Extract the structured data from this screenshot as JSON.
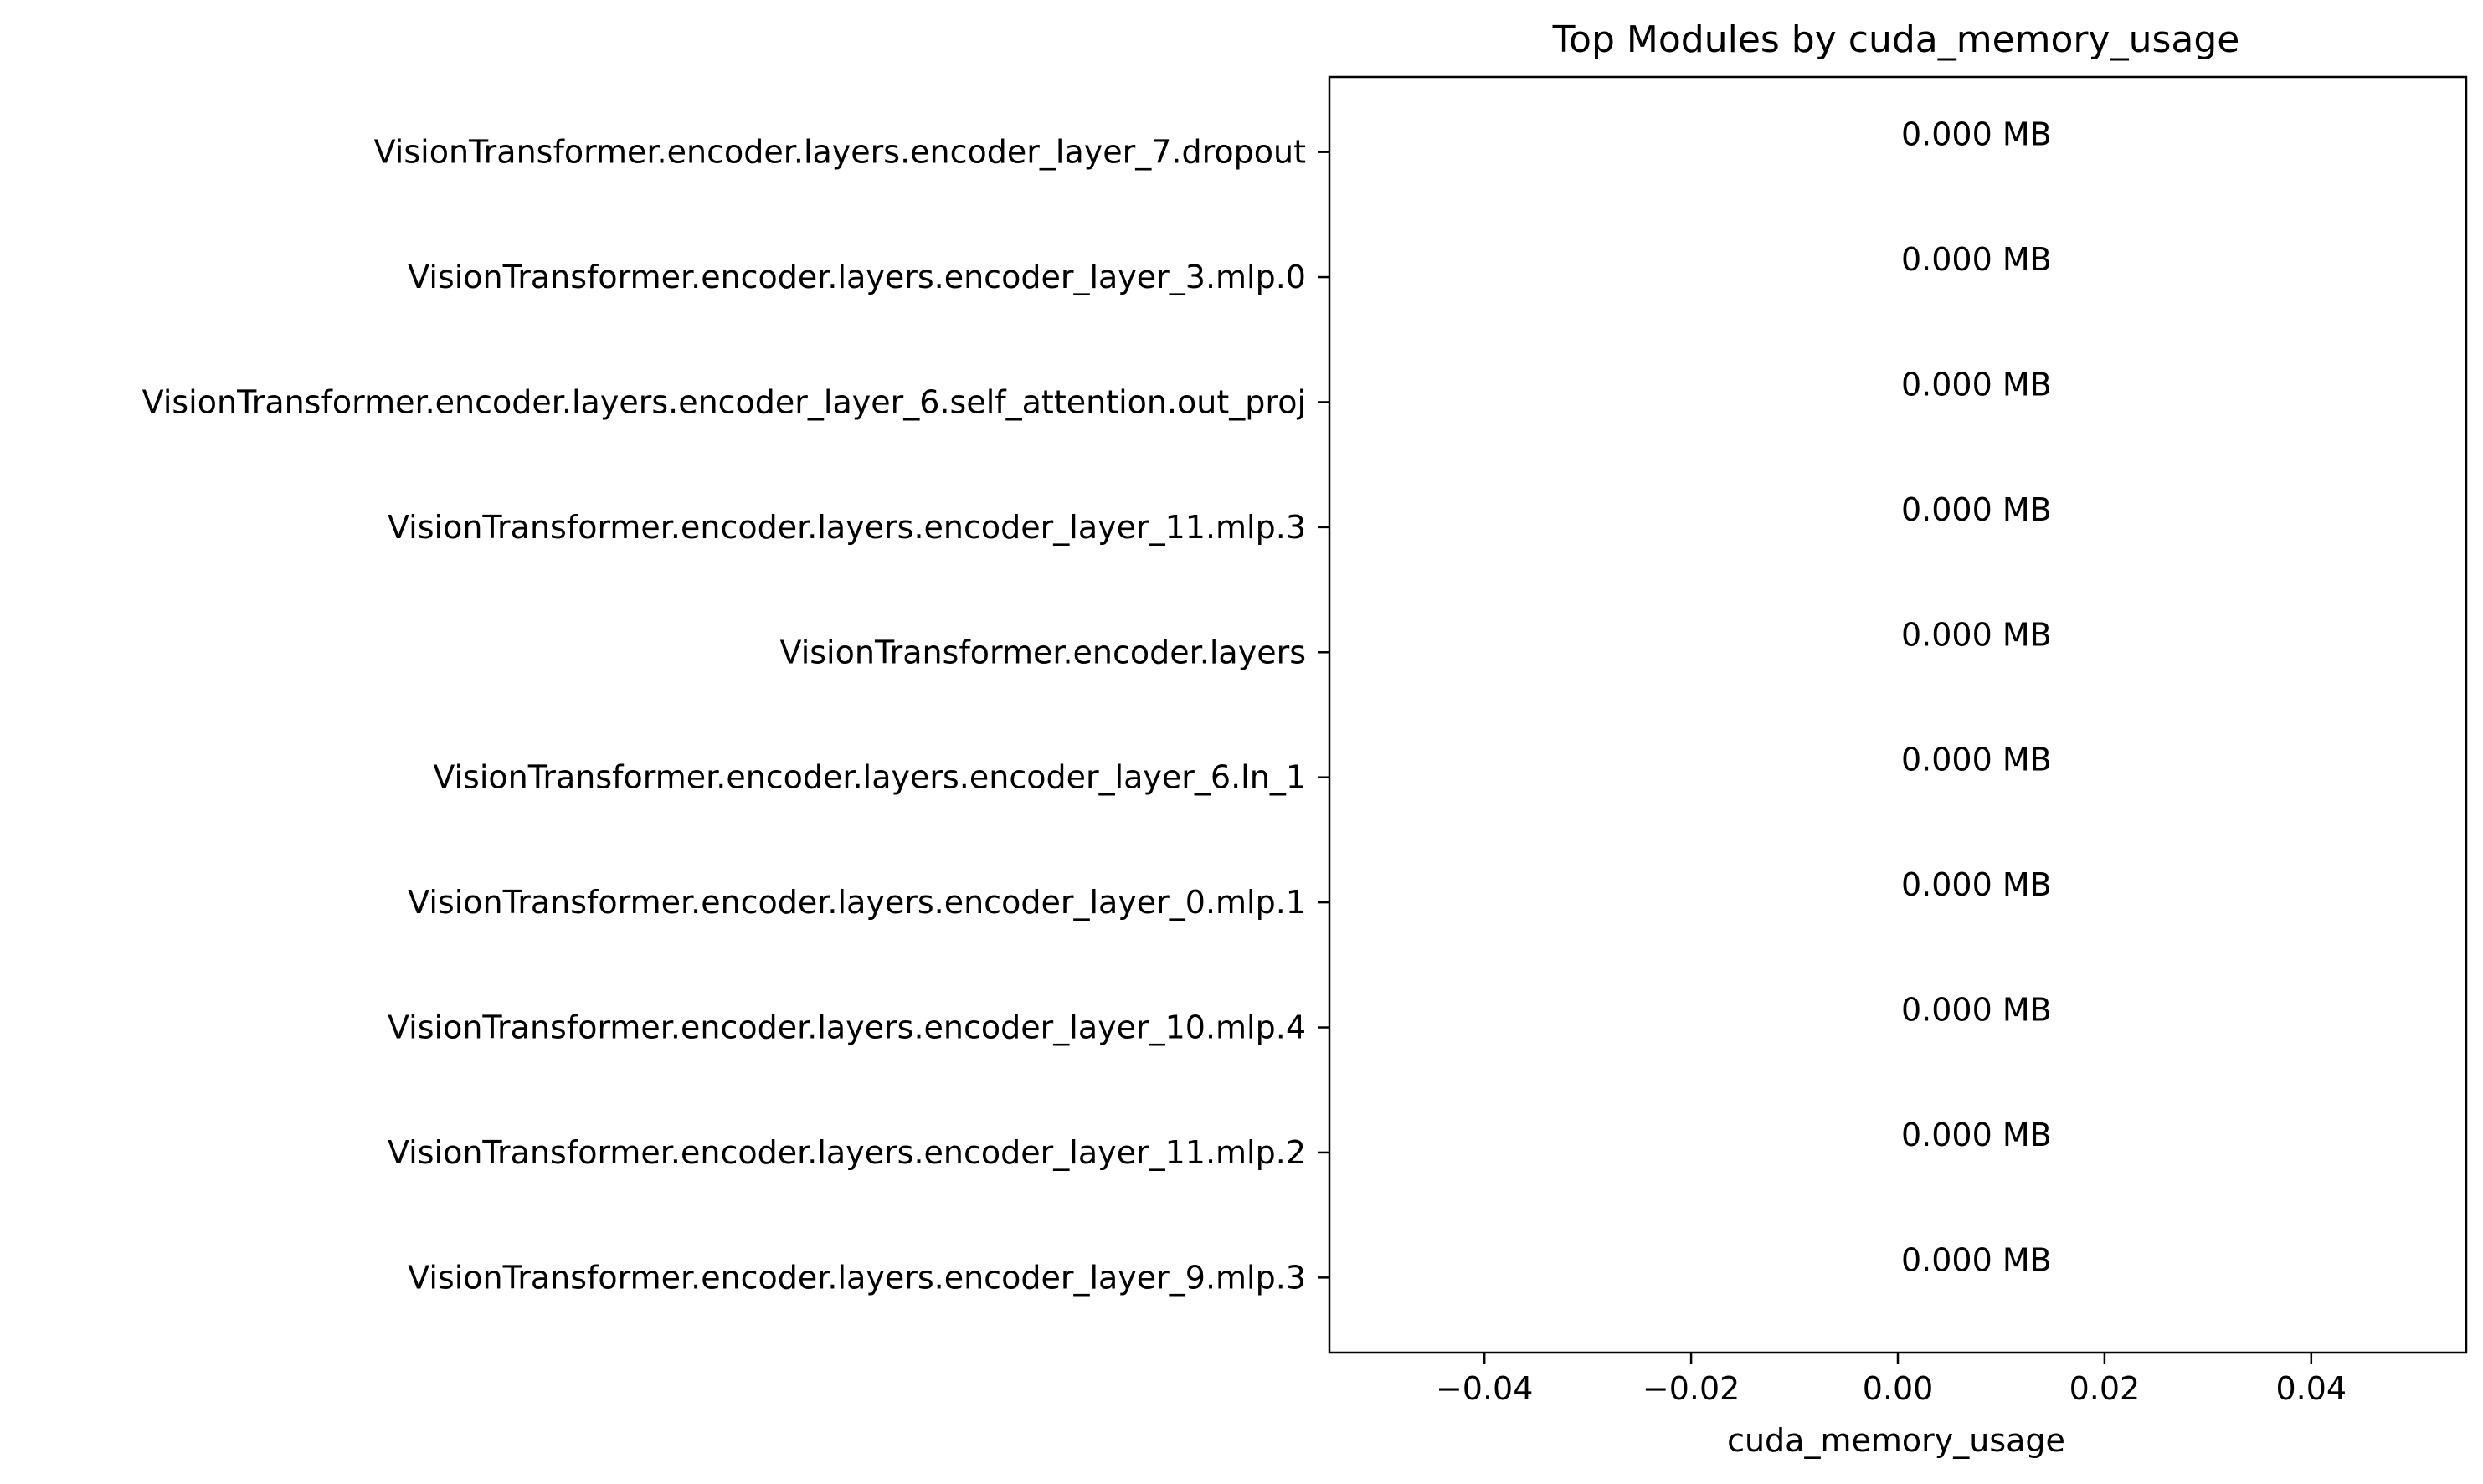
{
  "chart_data": {
    "type": "bar",
    "orientation": "horizontal",
    "title": "Top Modules by cuda_memory_usage",
    "xlabel": "cuda_memory_usage",
    "ylabel": "",
    "xlim": [
      -0.055,
      0.055
    ],
    "xticks": [
      -0.04,
      -0.02,
      0.0,
      0.02,
      0.04
    ],
    "xtick_labels": [
      "−0.04",
      "−0.02",
      "0.00",
      "0.02",
      "0.04"
    ],
    "grid": false,
    "categories": [
      "VisionTransformer.encoder.layers.encoder_layer_7.dropout",
      "VisionTransformer.encoder.layers.encoder_layer_3.mlp.0",
      "VisionTransformer.encoder.layers.encoder_layer_6.self_attention.out_proj",
      "VisionTransformer.encoder.layers.encoder_layer_11.mlp.3",
      "VisionTransformer.encoder.layers",
      "VisionTransformer.encoder.layers.encoder_layer_6.ln_1",
      "VisionTransformer.encoder.layers.encoder_layer_0.mlp.1",
      "VisionTransformer.encoder.layers.encoder_layer_10.mlp.4",
      "VisionTransformer.encoder.layers.encoder_layer_11.mlp.2",
      "VisionTransformer.encoder.layers.encoder_layer_9.mlp.3"
    ],
    "values": [
      0,
      0,
      0,
      0,
      0,
      0,
      0,
      0,
      0,
      0
    ],
    "data_labels": [
      "0.000 MB",
      "0.000 MB",
      "0.000 MB",
      "0.000 MB",
      "0.000 MB",
      "0.000 MB",
      "0.000 MB",
      "0.000 MB",
      "0.000 MB",
      "0.000 MB"
    ],
    "bar_color": "#1f77b4"
  }
}
